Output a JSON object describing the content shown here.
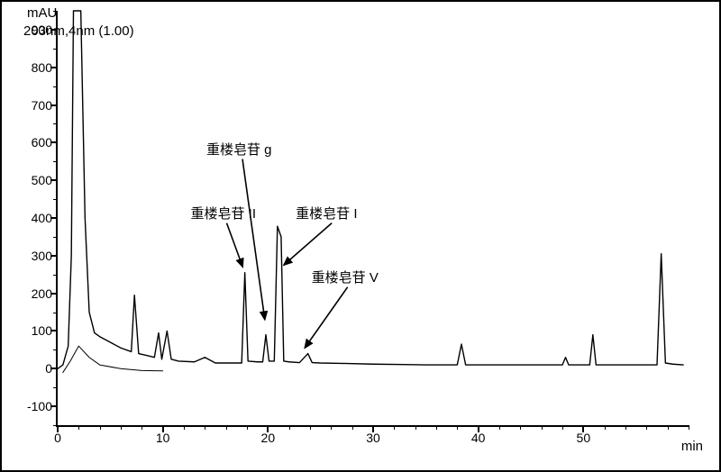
{
  "chart": {
    "type": "chromatogram",
    "background_color": "#ffffff",
    "line_color": "#000000",
    "line_width": 1.4,
    "axis_color": "#000000",
    "border_color": "#000000",
    "xlabel_unit": "min",
    "ylabel_unit": "mAU",
    "subtitle": "203nm,4nm (1.00)",
    "label_fontsize": 15,
    "tick_fontsize": 14,
    "annotation_fontsize": 15,
    "xlim": [
      0,
      60
    ],
    "ylim": [
      -150,
      950
    ],
    "xticks": [
      0,
      10,
      20,
      30,
      40,
      50
    ],
    "xticks_minor_step": 2,
    "yticks": [
      -100,
      0,
      100,
      200,
      300,
      400,
      500,
      600,
      700,
      800,
      900
    ],
    "yticks_minor_step": 50,
    "series": {
      "points": [
        [
          0.0,
          0
        ],
        [
          0.5,
          10
        ],
        [
          1.0,
          60
        ],
        [
          1.3,
          300
        ],
        [
          1.5,
          950
        ],
        [
          1.8,
          950
        ],
        [
          2.2,
          950
        ],
        [
          2.6,
          400
        ],
        [
          3.0,
          150
        ],
        [
          3.5,
          95
        ],
        [
          4.0,
          85
        ],
        [
          5.0,
          70
        ],
        [
          6.0,
          55
        ],
        [
          7.0,
          45
        ],
        [
          7.3,
          195
        ],
        [
          7.7,
          40
        ],
        [
          8.5,
          35
        ],
        [
          9.2,
          30
        ],
        [
          9.6,
          95
        ],
        [
          9.9,
          25
        ],
        [
          10.4,
          100
        ],
        [
          10.8,
          25
        ],
        [
          11.5,
          20
        ],
        [
          13.0,
          18
        ],
        [
          14.0,
          30
        ],
        [
          15.0,
          15
        ],
        [
          16.0,
          15
        ],
        [
          17.0,
          15
        ],
        [
          17.5,
          15
        ],
        [
          17.8,
          255
        ],
        [
          18.1,
          20
        ],
        [
          19.0,
          18
        ],
        [
          19.5,
          18
        ],
        [
          19.8,
          90
        ],
        [
          20.1,
          20
        ],
        [
          20.6,
          20
        ],
        [
          20.9,
          378
        ],
        [
          21.25,
          350
        ],
        [
          21.5,
          20
        ],
        [
          22.0,
          18
        ],
        [
          23.0,
          16
        ],
        [
          23.8,
          40
        ],
        [
          24.2,
          16
        ],
        [
          25.0,
          15
        ],
        [
          27.0,
          14
        ],
        [
          30.0,
          12
        ],
        [
          33.0,
          11
        ],
        [
          35.0,
          10
        ],
        [
          37.0,
          10
        ],
        [
          38.0,
          10
        ],
        [
          38.4,
          65
        ],
        [
          38.8,
          10
        ],
        [
          40.0,
          10
        ],
        [
          43.0,
          10
        ],
        [
          46.0,
          10
        ],
        [
          47.5,
          10
        ],
        [
          48.0,
          10
        ],
        [
          48.3,
          30
        ],
        [
          48.6,
          10
        ],
        [
          50.0,
          10
        ],
        [
          50.6,
          10
        ],
        [
          50.9,
          90
        ],
        [
          51.2,
          10
        ],
        [
          52.0,
          10
        ],
        [
          54.0,
          10
        ],
        [
          56.0,
          10
        ],
        [
          57.0,
          10
        ],
        [
          57.4,
          305
        ],
        [
          57.8,
          15
        ],
        [
          58.5,
          12
        ],
        [
          59.5,
          10
        ]
      ]
    },
    "baseline2": {
      "points": [
        [
          0.5,
          -10
        ],
        [
          1.2,
          20
        ],
        [
          2.0,
          60
        ],
        [
          3.0,
          30
        ],
        [
          4.0,
          10
        ],
        [
          6.0,
          0
        ],
        [
          8.0,
          -5
        ],
        [
          10.0,
          -6
        ]
      ]
    },
    "annotations": [
      {
        "id": "II",
        "text": "重楼皂苷 II",
        "x_label": 13.5,
        "y_label": 420,
        "x_tip": 17.6,
        "y_tip": 270
      },
      {
        "id": "g",
        "text": "重楼皂苷 g",
        "x_label": 15.0,
        "y_label": 590,
        "x_tip": 19.7,
        "y_tip": 130
      },
      {
        "id": "I",
        "text": "重楼皂苷 I",
        "x_label": 23.5,
        "y_label": 420,
        "x_tip": 21.5,
        "y_tip": 275
      },
      {
        "id": "V",
        "text": "重楼皂苷 V",
        "x_label": 25.0,
        "y_label": 250,
        "x_tip": 23.5,
        "y_tip": 55
      }
    ]
  }
}
